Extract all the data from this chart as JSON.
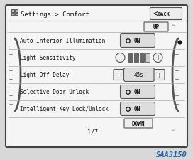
{
  "bg_color": "#d8d8d8",
  "inner_bg": "#f5f5f5",
  "title_text": "Settings > Comfort",
  "back_btn": "BACK",
  "up_btn": "UP",
  "down_btn": "DOWN",
  "page_indicator": "1/7",
  "rows": [
    {
      "label": "Auto Interior Illumination",
      "control": "toggle_on"
    },
    {
      "label": "Light Sensitivity",
      "control": "slider_bars"
    },
    {
      "label": "Light Off Delay",
      "control": "value_45s"
    },
    {
      "label": "Selective Door Unlock",
      "control": "toggle_on"
    },
    {
      "label": "Intelligent Key Lock/Unlock",
      "control": "toggle_on"
    }
  ],
  "watermark": "SAA3150",
  "watermark_color": "#1a5faa",
  "row_line_color": "#aaaaaa",
  "border_color": "#444444",
  "scroll_arc_color": "#555555",
  "text_color": "#111111",
  "btn_bg": "#eeeeee",
  "btn_border": "#555555",
  "toggle_bg": "#dddddd",
  "bar_fill": "#666666",
  "bar_empty": "#cccccc",
  "title_line_color": "#666666"
}
